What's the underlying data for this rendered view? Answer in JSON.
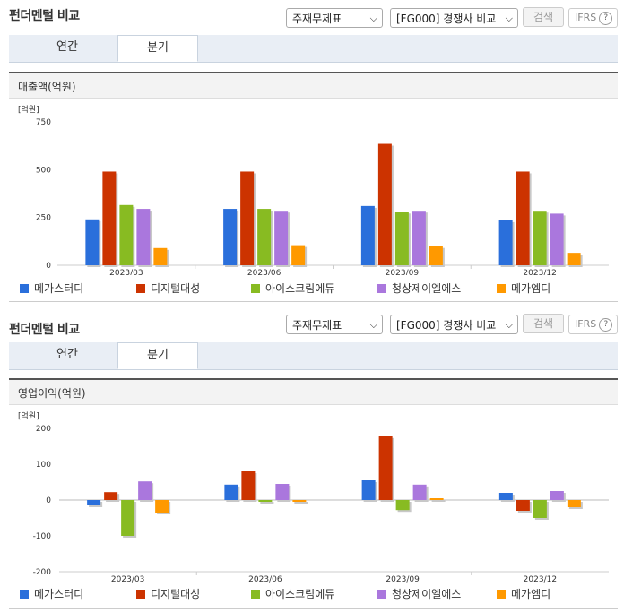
{
  "colors": {
    "s0": "#2a6fdb",
    "s1": "#cc3300",
    "s2": "#88bb22",
    "s3": "#aa77dd",
    "s4": "#ff9900"
  },
  "panels": [
    {
      "title": "펀더멘털 비교",
      "select1": "주재무제표",
      "select2": "[FG000] 경쟁사 비교",
      "search": "검색",
      "ifrs": "IFRS",
      "ifrs_help": "?",
      "tab_annual": "연간",
      "tab_quarter": "분기",
      "subtitle": "매출액(억원)",
      "chart_data": {
        "type": "bar",
        "unit": "[억원]",
        "categories": [
          "2023/03",
          "2023/06",
          "2023/09",
          "2023/12"
        ],
        "ylim": [
          0,
          750
        ],
        "yticks": [
          0,
          250,
          500,
          750
        ],
        "series": [
          {
            "name": "메가스터디",
            "values": [
              240,
              295,
              310,
              235
            ]
          },
          {
            "name": "디지털대성",
            "values": [
              490,
              490,
              635,
              490
            ]
          },
          {
            "name": "아이스크림에듀",
            "values": [
              315,
              295,
              280,
              285
            ]
          },
          {
            "name": "청상제이엘에스",
            "values": [
              295,
              285,
              285,
              270
            ]
          },
          {
            "name": "메가엠디",
            "values": [
              90,
              105,
              100,
              65
            ]
          }
        ]
      }
    },
    {
      "title": "펀더멘털 비교",
      "select1": "주재무제표",
      "select2": "[FG000] 경쟁사 비교",
      "search": "검색",
      "ifrs": "IFRS",
      "ifrs_help": "?",
      "tab_annual": "연간",
      "tab_quarter": "분기",
      "subtitle": "영업이익(억원)",
      "chart_data": {
        "type": "bar",
        "unit": "[억원]",
        "categories": [
          "2023/03",
          "2023/06",
          "2023/09",
          "2023/12"
        ],
        "ylim": [
          -200,
          200
        ],
        "yticks": [
          -200,
          -100,
          0,
          100,
          200
        ],
        "series": [
          {
            "name": "메가스터디",
            "values": [
              -15,
              43,
              55,
              20
            ]
          },
          {
            "name": "디지털대성",
            "values": [
              22,
              80,
              178,
              -30
            ]
          },
          {
            "name": "아이스크림에듀",
            "values": [
              -100,
              -5,
              -28,
              -50
            ]
          },
          {
            "name": "청상제이엘에스",
            "values": [
              52,
              45,
              43,
              25
            ]
          },
          {
            "name": "메가엠디",
            "values": [
              -35,
              -5,
              5,
              -20
            ]
          }
        ]
      }
    }
  ]
}
